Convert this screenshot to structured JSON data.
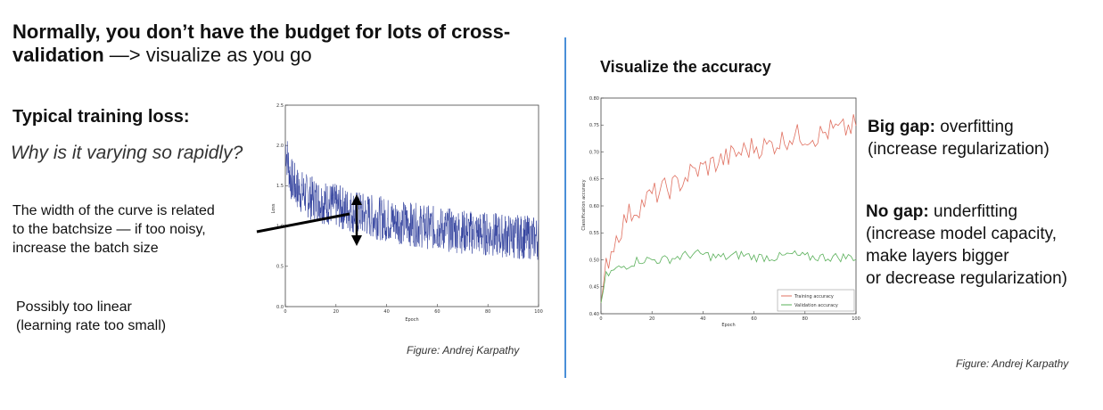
{
  "left": {
    "heading_line1": "Normally, you don’t have the budget for lots of cross-",
    "heading_bold2": "validation",
    "heading_rest2": " —> visualize as you go",
    "subheading": "Typical training loss:",
    "question": "Why is it varying so rapidly?",
    "width_note": [
      "The width of the curve is related",
      "to the batchsize — if too noisy,",
      "increase the batch size"
    ],
    "linear_note": [
      "Possibly too linear",
      "(learning rate too small)"
    ],
    "credit": "Figure: Andrej Karpathy"
  },
  "right": {
    "title": "Visualize the accuracy",
    "big_gap_bold": "Big gap:",
    "big_gap_text": " overfitting",
    "big_gap_line2": "(increase regularization)",
    "no_gap_bold": "No gap:",
    "no_gap_text": " underfitting",
    "no_gap_lines": [
      "(increase model capacity,",
      "make layers bigger",
      "or decrease regularization)"
    ],
    "credit": "Figure: Andrej Karpathy"
  },
  "chart_data": [
    {
      "type": "line",
      "xlabel": "Epoch",
      "ylabel": "Loss",
      "xlim": [
        0,
        100
      ],
      "ylim": [
        0.0,
        2.5
      ],
      "xticks": [
        "0",
        "20",
        "40",
        "60",
        "80",
        "100"
      ],
      "yticks": [
        "0.0",
        "0.5",
        "1.0",
        "1.5",
        "2.0",
        "2.5"
      ],
      "series": [
        {
          "color": "#2a3a9a",
          "x": [
            0,
            2,
            5,
            10,
            15,
            20,
            30,
            40,
            50,
            60,
            70,
            80,
            90,
            100
          ],
          "values": [
            2.0,
            1.6,
            1.45,
            1.35,
            1.3,
            1.25,
            1.15,
            1.08,
            1.02,
            0.97,
            0.93,
            0.9,
            0.87,
            0.85
          ]
        }
      ]
    },
    {
      "type": "line",
      "xlabel": "Epoch",
      "ylabel": "Classification accuracy",
      "xlim": [
        0,
        100
      ],
      "ylim": [
        0.4,
        0.8
      ],
      "xticks": [
        "0",
        "20",
        "40",
        "60",
        "80",
        "100"
      ],
      "yticks": [
        "0.40",
        "0.45",
        "0.50",
        "0.55",
        "0.60",
        "0.65",
        "0.70",
        "0.75",
        "0.80"
      ],
      "legend": "bottom-right",
      "series": [
        {
          "name": "Training accuracy",
          "color": "#e07060",
          "x": [
            0,
            2,
            5,
            10,
            15,
            20,
            25,
            30,
            35,
            40,
            45,
            50,
            55,
            60,
            65,
            70,
            75,
            80,
            85,
            90,
            95,
            100
          ],
          "values": [
            0.42,
            0.49,
            0.53,
            0.58,
            0.6,
            0.62,
            0.63,
            0.64,
            0.66,
            0.67,
            0.68,
            0.69,
            0.7,
            0.71,
            0.71,
            0.72,
            0.73,
            0.73,
            0.73,
            0.74,
            0.74,
            0.75
          ]
        },
        {
          "name": "Validation accuracy",
          "color": "#5ab05a",
          "x": [
            0,
            2,
            5,
            10,
            15,
            20,
            25,
            30,
            35,
            40,
            45,
            50,
            55,
            60,
            65,
            70,
            75,
            80,
            85,
            90,
            95,
            100
          ],
          "values": [
            0.42,
            0.47,
            0.48,
            0.49,
            0.5,
            0.5,
            0.5,
            0.505,
            0.51,
            0.51,
            0.505,
            0.505,
            0.51,
            0.505,
            0.505,
            0.505,
            0.51,
            0.505,
            0.505,
            0.505,
            0.505,
            0.505
          ]
        }
      ]
    }
  ]
}
